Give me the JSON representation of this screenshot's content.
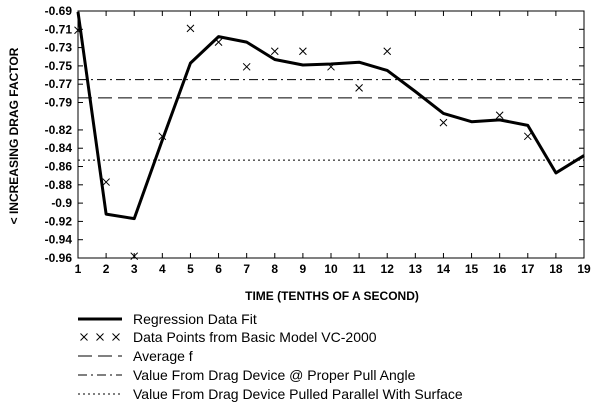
{
  "chart_data": {
    "type": "line",
    "xlabel": "TIME (TENTHS OF A SECOND)",
    "ylabel": "< INCREASING DRAG FACTOR",
    "xlim": [
      1,
      19
    ],
    "ylim": [
      -0.96,
      -0.69
    ],
    "x_ticks": [
      1,
      2,
      3,
      4,
      5,
      6,
      7,
      8,
      9,
      10,
      11,
      12,
      13,
      14,
      15,
      16,
      17,
      18,
      19
    ],
    "y_ticks": [
      -0.69,
      -0.71,
      -0.73,
      -0.75,
      -0.77,
      -0.79,
      -0.82,
      -0.84,
      -0.86,
      -0.88,
      -0.9,
      -0.92,
      -0.94,
      -0.96
    ],
    "y_tick_labels": [
      "-0.69",
      "-0.71",
      "-0.73",
      "-0.75",
      "-0.77",
      "-0.79",
      "-0.82",
      "-0.84",
      "-0.86",
      "-0.88",
      "-0.9",
      "-0.92",
      "-0.94",
      "-0.96"
    ],
    "grid": false,
    "legend_placement": "bottom",
    "series": [
      {
        "name": "Regression Data Fit",
        "style": "solid-thick",
        "x": [
          1,
          2,
          3,
          4,
          5,
          6,
          7,
          8,
          9,
          10,
          11,
          12,
          13,
          14,
          15,
          16,
          17,
          18,
          19
        ],
        "values": [
          -0.691,
          -0.912,
          -0.917,
          -0.831,
          -0.747,
          -0.718,
          -0.724,
          -0.743,
          -0.749,
          -0.748,
          -0.746,
          -0.755,
          -0.778,
          -0.802,
          -0.811,
          -0.809,
          -0.815,
          -0.867,
          -0.848
        ]
      },
      {
        "name": "Data Points from Basic Model VC-2000",
        "style": "x-markers",
        "x": [
          1,
          2,
          3,
          4,
          5,
          6,
          7,
          8,
          9,
          10,
          11,
          12,
          14,
          16,
          17
        ],
        "values": [
          -0.711,
          -0.877,
          -0.958,
          -0.827,
          -0.709,
          -0.724,
          -0.751,
          -0.734,
          -0.734,
          -0.751,
          -0.774,
          -0.734,
          -0.812,
          -0.804,
          -0.827
        ]
      },
      {
        "name": "Average f",
        "style": "long-dash",
        "constant": -0.785
      },
      {
        "name": "Value From Drag Device @ Proper Pull Angle",
        "style": "dash-dot",
        "constant": -0.765
      },
      {
        "name": "Value From Drag Device Pulled Parallel With Surface",
        "style": "dotted",
        "constant": -0.853
      }
    ]
  }
}
